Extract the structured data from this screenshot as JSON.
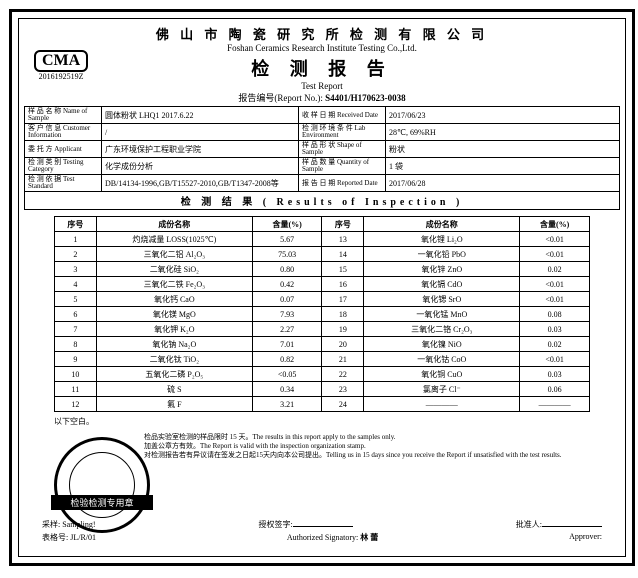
{
  "company_cn": "佛 山 市 陶 瓷 研 究 所 检 测 有 限 公 司",
  "company_en": "Foshan Ceramics Research Institute Testing Co.,Ltd.",
  "title_cn": "检 测 报 告",
  "title_en": "Test   Report",
  "logo_text": "CMA",
  "logo_number": "2016192519Z",
  "report_no_label": "报告编号(Report No.):",
  "report_no": "S4401/H170623-0038",
  "info": {
    "sample_name_lbl": "样 品 名 称\nName of Sample",
    "sample_name": "圆体粉状 LHQ1 2017.6.22",
    "recv_date_lbl": "收 样 日 期\nReceived  Date",
    "recv_date": "2017/06/23",
    "customer_lbl": "客 户 信 息\nCustomer Information",
    "customer": "/",
    "env_lbl": "检 测 环 境 条 件\nLab Environment",
    "env": "28℃,  69%RH",
    "applicant_lbl": "委 托 方\nApplicant",
    "applicant": "广东环境保护工程职业学院",
    "shape_lbl": "样 品 形 状\nShape of  Sample",
    "shape": "粉状",
    "category_lbl": "检 测 类 别\nTesting Category",
    "category": "化学成份分析",
    "qty_lbl": "样 品 数 量\nQuantity of Sample",
    "qty": "1 袋",
    "std_lbl": "检 测 依 据\nTest   Standard",
    "std": "DB/14134-1996,GB/T15527-2010,GB/T1347-2008等",
    "rep_date_lbl": "报 告 日 期\nReported   Date",
    "rep_date": "2017/06/28"
  },
  "results_title": "检  测  结  果  ( Results of Inspection )",
  "col_headers": [
    "序号",
    "成份名称",
    "含量(%)",
    "序号",
    "成份名称",
    "含量(%)"
  ],
  "rows": [
    [
      "1",
      "灼烧减量 LOSS(1025℃)",
      "5.67",
      "13",
      "氧化锂 Li₂O",
      "<0.01"
    ],
    [
      "2",
      "三氧化二铝 Al₂O₃",
      "75.03",
      "14",
      "一氧化铅 PbO",
      "<0.01"
    ],
    [
      "3",
      "二氧化硅 SiO₂",
      "0.80",
      "15",
      "氧化锌 ZnO",
      "0.02"
    ],
    [
      "4",
      "三氧化二铁 Fe₂O₃",
      "0.42",
      "16",
      "氧化镉 CdO",
      "<0.01"
    ],
    [
      "5",
      "氧化钙 CaO",
      "0.07",
      "17",
      "氧化锶 SrO",
      "<0.01"
    ],
    [
      "6",
      "氧化镁 MgO",
      "7.93",
      "18",
      "一氧化锰 MnO",
      "0.08"
    ],
    [
      "7",
      "氧化钾 K₂O",
      "2.27",
      "19",
      "三氧化二铬 Cr₂O₃",
      "0.03"
    ],
    [
      "8",
      "氧化钠 Na₂O",
      "7.01",
      "20",
      "氧化镍 NiO",
      "0.02"
    ],
    [
      "9",
      "二氧化钛 TiO₂",
      "0.82",
      "21",
      "一氧化钴 CoO",
      "<0.01"
    ],
    [
      "10",
      "五氧化二磷 P₂O₅",
      "<0.05",
      "22",
      "氧化铜 CuO",
      "0.03"
    ],
    [
      "11",
      "硫 S",
      "0.34",
      "23",
      "氯离子 Cl⁻",
      "0.06"
    ],
    [
      "12",
      "氟 F",
      "3.21",
      "24",
      "————",
      "————"
    ]
  ],
  "blank_note": "以下空白。",
  "disclaimer": "检品实验室检测的样品限时 15 天。The results in this report apply to the samples only.\n加盖公章方有效。The Report is valid with the inspection organization stamp.\n对检测报告若有异议请在签发之日起15天内向本公司提出。Telling us in 15 days since you receive the Report if unsatisfied with the test results.",
  "stamp_text": "检验检测专用章",
  "footer": {
    "sampler_lbl": "采样:",
    "sampler": "Sampling!",
    "authsig_lbl": "授权签字:",
    "authsig_en": "Authorized Signatory:",
    "auth_name": "林 蕾",
    "approve_lbl": "批准人:",
    "approve_en": "Approver:",
    "form_lbl": "表格号:  JL/R/01"
  }
}
